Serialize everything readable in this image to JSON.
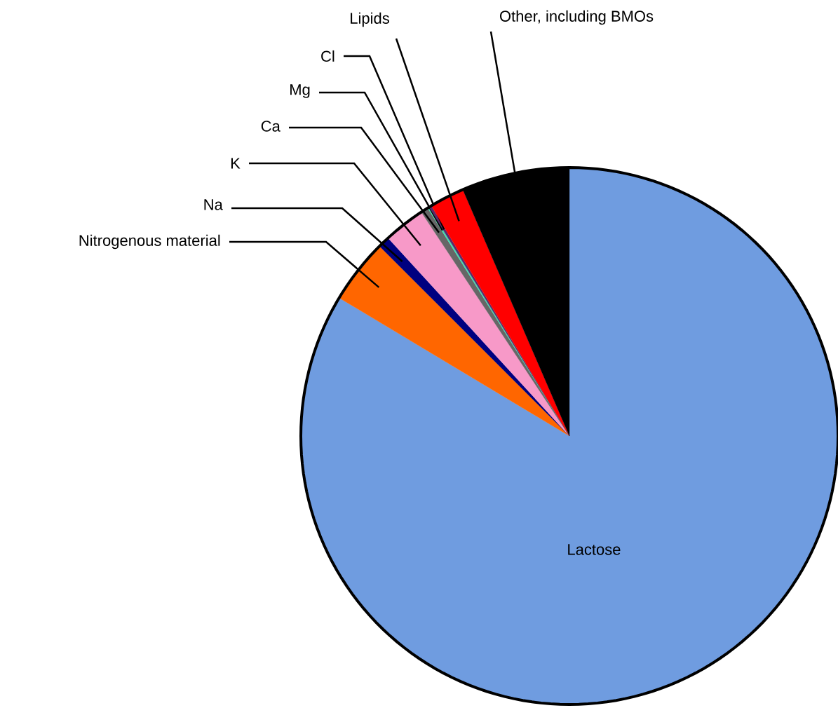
{
  "chart_data": {
    "type": "pie",
    "categories": [
      "Lactose",
      "Nitrogenous material",
      "Na",
      "K",
      "Ca",
      "Mg",
      "Cl",
      "Lipids",
      "Other, including BMOs"
    ],
    "values": [
      83.6,
      3.9,
      0.7,
      2.5,
      0.45,
      0.1,
      0.15,
      2.1,
      6.5
    ],
    "colors": [
      "#6f9ce0",
      "#ff6600",
      "#000080",
      "#f799c8",
      "#666666",
      "#40e0b0",
      "#5a2a6a",
      "#ff0000",
      "#000000"
    ]
  }
}
